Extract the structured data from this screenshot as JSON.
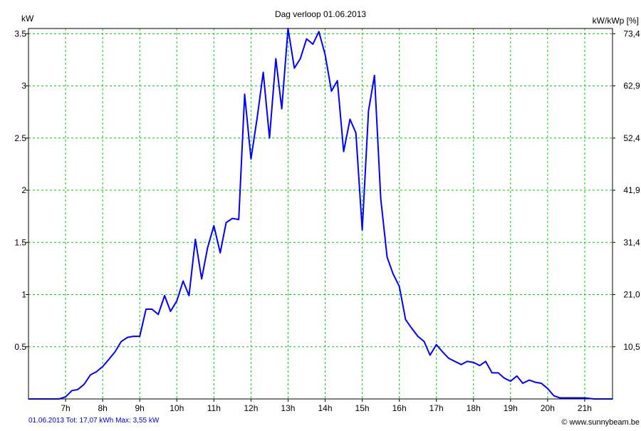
{
  "chart_data": {
    "type": "line",
    "title": "Dag  verloop 01.06.2013",
    "ylabel_left": "kW",
    "ylabel_right": "kW/kWp [%]",
    "xlim": [
      6,
      21.75
    ],
    "ylim": [
      0,
      3.55
    ],
    "x_ticks": [
      {
        "value": 7,
        "label": "7h"
      },
      {
        "value": 8,
        "label": "8h"
      },
      {
        "value": 9,
        "label": "9h"
      },
      {
        "value": 10,
        "label": "10h"
      },
      {
        "value": 11,
        "label": "11h"
      },
      {
        "value": 12,
        "label": "12h"
      },
      {
        "value": 13,
        "label": "13h"
      },
      {
        "value": 14,
        "label": "14h"
      },
      {
        "value": 15,
        "label": "15h"
      },
      {
        "value": 16,
        "label": "16h"
      },
      {
        "value": 17,
        "label": "17h"
      },
      {
        "value": 18,
        "label": "18h"
      },
      {
        "value": 19,
        "label": "19h"
      },
      {
        "value": 20,
        "label": "20h"
      },
      {
        "value": 21,
        "label": "21h"
      }
    ],
    "y_ticks_left": [
      {
        "value": 0.5,
        "label": "0.5"
      },
      {
        "value": 1,
        "label": "1"
      },
      {
        "value": 1.5,
        "label": "1.5"
      },
      {
        "value": 2,
        "label": "2"
      },
      {
        "value": 2.5,
        "label": "2.5"
      },
      {
        "value": 3,
        "label": "3"
      },
      {
        "value": 3.5,
        "label": "3.5"
      }
    ],
    "y_ticks_right": [
      {
        "value": 0.5,
        "label": "10,5"
      },
      {
        "value": 1,
        "label": "21,0"
      },
      {
        "value": 1.5,
        "label": "31,4"
      },
      {
        "value": 2,
        "label": "41,9"
      },
      {
        "value": 2.5,
        "label": "52,4"
      },
      {
        "value": 3,
        "label": "62,9"
      },
      {
        "value": 3.5,
        "label": "73,4"
      }
    ],
    "grid": true,
    "line_color": "#0000ff",
    "grid_color": "#00cc00",
    "series": [
      {
        "x": [
          6.0,
          6.5,
          6.83,
          7.0,
          7.17,
          7.33,
          7.5,
          7.67,
          7.83,
          8.0,
          8.17,
          8.33,
          8.5,
          8.67,
          8.83,
          9.0,
          9.17,
          9.33,
          9.5,
          9.67,
          9.83,
          10.0,
          10.17,
          10.33,
          10.5,
          10.67,
          10.83,
          11.0,
          11.17,
          11.33,
          11.5,
          11.67,
          11.83,
          12.0,
          12.17,
          12.33,
          12.5,
          12.67,
          12.83,
          13.0,
          13.17,
          13.33,
          13.5,
          13.67,
          13.83,
          14.0,
          14.17,
          14.33,
          14.5,
          14.67,
          14.83,
          15.0,
          15.17,
          15.33,
          15.5,
          15.67,
          15.83,
          16.0,
          16.17,
          16.33,
          16.5,
          16.67,
          16.83,
          17.0,
          17.17,
          17.33,
          17.5,
          17.67,
          17.83,
          18.0,
          18.17,
          18.33,
          18.5,
          18.67,
          18.83,
          19.0,
          19.17,
          19.33,
          19.5,
          19.67,
          19.83,
          20.0,
          20.17,
          20.33,
          20.5,
          21.0,
          21.25,
          21.75
        ],
        "y": [
          0,
          0,
          0,
          0.02,
          0.08,
          0.09,
          0.14,
          0.23,
          0.26,
          0.31,
          0.38,
          0.45,
          0.55,
          0.59,
          0.6,
          0.6,
          0.86,
          0.86,
          0.81,
          0.99,
          0.84,
          0.94,
          1.13,
          0.99,
          1.53,
          1.15,
          1.45,
          1.66,
          1.4,
          1.69,
          1.73,
          1.72,
          2.92,
          2.3,
          2.7,
          3.13,
          2.5,
          3.26,
          2.78,
          3.55,
          3.17,
          3.26,
          3.45,
          3.4,
          3.52,
          3.3,
          2.95,
          3.05,
          2.37,
          2.68,
          2.55,
          1.62,
          2.76,
          3.1,
          1.92,
          1.36,
          1.2,
          1.08,
          0.76,
          0.68,
          0.6,
          0.55,
          0.42,
          0.52,
          0.45,
          0.39,
          0.36,
          0.33,
          0.36,
          0.35,
          0.32,
          0.36,
          0.25,
          0.25,
          0.2,
          0.17,
          0.22,
          0.15,
          0.18,
          0.16,
          0.15,
          0.1,
          0.03,
          0.01,
          0.01,
          0.01,
          0,
          0
        ]
      }
    ]
  },
  "footer": {
    "summary": "01.06.2013 Tot: 17,07 kWh Max: 3,55 kW",
    "credit": "© www.sunnybeam.be"
  }
}
